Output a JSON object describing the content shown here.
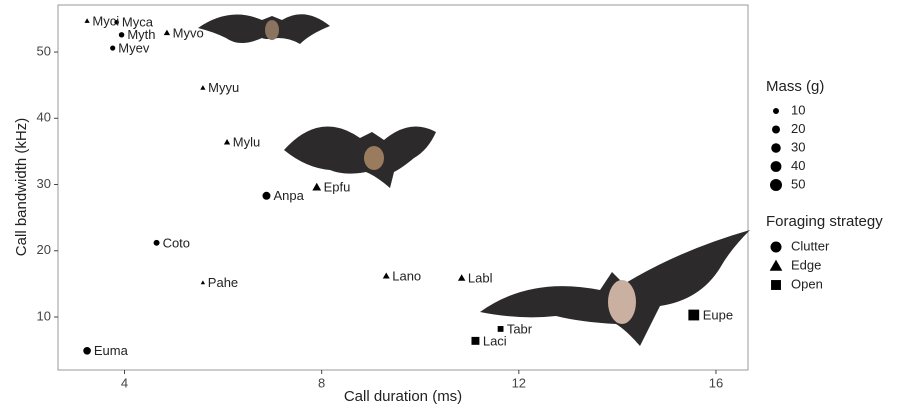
{
  "chart_data": {
    "type": "scatter",
    "xlabel": "Call duration (ms)",
    "ylabel": "Call bandwidth (kHz)",
    "xlim": [
      2.65,
      16.65
    ],
    "ylim": [
      2,
      57.1
    ],
    "xticks": [
      4,
      8,
      12,
      16
    ],
    "yticks": [
      10,
      20,
      30,
      40,
      50
    ],
    "grid": false,
    "color": "#000000",
    "size_legend": {
      "title": "Mass (g)",
      "values": [
        10,
        20,
        30,
        40,
        50
      ]
    },
    "shape_legend_title": "Foraging strategy",
    "series": [
      {
        "name": "Clutter",
        "shape": "circle",
        "labels": [
          "Myca",
          "Myth",
          "Myev",
          "Anpa",
          "Coto",
          "Euma"
        ],
        "x": [
          3.84,
          3.94,
          3.76,
          6.88,
          4.65,
          3.24
        ],
        "y": [
          54.5,
          52.6,
          50.6,
          28.3,
          21.2,
          4.9
        ],
        "size": [
          5,
          8,
          7,
          20,
          10,
          18
        ]
      },
      {
        "name": "Edge",
        "shape": "triangle",
        "labels": [
          "Myci",
          "Myvo",
          "Myyu",
          "Mylu",
          "Epfu",
          "Pahe",
          "Lano",
          "Labl"
        ],
        "x": [
          3.24,
          4.86,
          5.59,
          6.08,
          7.9,
          5.59,
          9.31,
          10.84
        ],
        "y": [
          54.7,
          52.9,
          44.6,
          36.4,
          29.6,
          15.2,
          16.2,
          15.9
        ],
        "size": [
          5,
          8,
          5,
          8,
          18,
          3,
          10,
          12
        ]
      },
      {
        "name": "Open",
        "shape": "square",
        "labels": [
          "Tabr",
          "Laci",
          "Eupe"
        ],
        "x": [
          11.63,
          11.12,
          15.55
        ],
        "y": [
          8.2,
          6.4,
          10.3
        ],
        "size": [
          12,
          25,
          50
        ]
      }
    ]
  }
}
